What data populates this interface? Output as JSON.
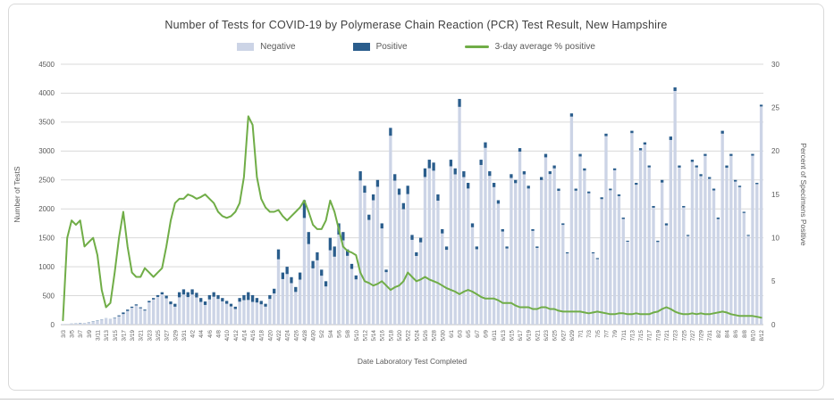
{
  "chart_data": {
    "type": "bar",
    "subtype": "stacked-bars-with-line-overlay",
    "title": "Number of Tests for COVID-19 by Polymerase Chain Reaction (PCR) Test Result, New Hampshire",
    "xlabel": "Date Laboratory Test Completed",
    "ylabel_left": "Number of TestS",
    "ylabel_right": "Percent of Specimens Positive",
    "ylim_left": [
      0,
      4500
    ],
    "ytick_step_left": 500,
    "ylim_right": [
      0,
      30
    ],
    "ytick_step_right": 5,
    "grid": true,
    "legend_position": "top",
    "colors": {
      "negative": "#ccd4e6",
      "positive": "#2a5d8c",
      "line": "#70ad47",
      "grid": "#d9d9d9",
      "axis_text": "#595959",
      "title_text": "#3f3f3f"
    },
    "dates": [
      "3/3",
      "3/4",
      "3/5",
      "3/6",
      "3/7",
      "3/8",
      "3/9",
      "3/10",
      "3/11",
      "3/12",
      "3/13",
      "3/14",
      "3/15",
      "3/16",
      "3/17",
      "3/18",
      "3/19",
      "3/20",
      "3/21",
      "3/22",
      "3/23",
      "3/24",
      "3/25",
      "3/26",
      "3/27",
      "3/28",
      "3/29",
      "3/30",
      "3/31",
      "4/1",
      "4/2",
      "4/3",
      "4/4",
      "4/5",
      "4/6",
      "4/7",
      "4/8",
      "4/9",
      "4/10",
      "4/11",
      "4/12",
      "4/13",
      "4/14",
      "4/15",
      "4/16",
      "4/17",
      "4/18",
      "4/19",
      "4/20",
      "4/21",
      "4/22",
      "4/23",
      "4/24",
      "4/25",
      "4/26",
      "4/27",
      "4/28",
      "4/29",
      "4/30",
      "5/1",
      "5/2",
      "5/3",
      "5/4",
      "5/5",
      "5/6",
      "5/7",
      "5/8",
      "5/9",
      "5/10",
      "5/11",
      "5/12",
      "5/13",
      "5/14",
      "5/15",
      "5/16",
      "5/17",
      "5/18",
      "5/19",
      "5/20",
      "5/21",
      "5/22",
      "5/23",
      "5/24",
      "5/25",
      "5/26",
      "5/27",
      "5/28",
      "5/29",
      "5/30",
      "5/31",
      "6/1",
      "6/2",
      "6/3",
      "6/4",
      "6/5",
      "6/6",
      "6/7",
      "6/8",
      "6/9",
      "6/10",
      "6/11",
      "6/12",
      "6/13",
      "6/14",
      "6/15",
      "6/16",
      "6/17",
      "6/18",
      "6/19",
      "6/20",
      "6/21",
      "6/22",
      "6/23",
      "6/24",
      "6/25",
      "6/26",
      "6/27",
      "6/28",
      "6/29",
      "6/30",
      "7/1",
      "7/2",
      "7/3",
      "7/4",
      "7/5",
      "7/6",
      "7/7",
      "7/8",
      "7/9",
      "7/10",
      "7/11",
      "7/12",
      "7/13",
      "7/14",
      "7/15",
      "7/16",
      "7/17",
      "7/18",
      "7/19",
      "7/20",
      "7/21",
      "7/22",
      "7/23",
      "7/24",
      "7/25",
      "7/26",
      "7/27",
      "7/28",
      "7/29",
      "7/30",
      "7/31",
      "8/1",
      "8/2",
      "8/3",
      "8/4",
      "8/5",
      "8/6",
      "8/7",
      "8/8",
      "8/9",
      "8/10",
      "8/11",
      "8/12"
    ],
    "xtick_every": 2,
    "series": [
      {
        "name": "Negative",
        "type": "bar",
        "stack": "tests",
        "values": [
          10,
          11,
          16,
          19,
          26,
          23,
          36,
          49,
          64,
          86,
          108,
          92,
          112,
          144,
          183,
          236,
          291,
          331,
          283,
          243,
          385,
          435,
          479,
          524,
          455,
          352,
          310,
          472,
          521,
          476,
          520,
          470,
          392,
          340,
          436,
          482,
          444,
          402,
          360,
          315,
          270,
          396,
          423,
          426,
          393,
          382,
          351,
          311,
          444,
          539,
          1129,
          787,
          874,
          717,
          565,
          778,
          1843,
          1392,
          973,
          1112,
          845,
          660,
          1285,
          1174,
          1557,
          1456,
          1189,
          963,
          782,
          2491,
          2280,
          1809,
          2149,
          2382,
          1662,
          907,
          3264,
          2488,
          2244,
          1995,
          2256,
          1465,
          1187,
          1422,
          2551,
          2702,
          2660,
          2142,
          1576,
          1293,
          2736,
          2597,
          3763,
          2549,
          2352,
          1683,
          1303,
          2759,
          3055,
          2570,
          2376,
          2090,
          1609,
          1316,
          2535,
          2445,
          2989,
          2597,
          2352,
          1620,
          1326,
          2499,
          2891,
          2602,
          2700,
          2312,
          1724,
          1231,
          3595,
          2315,
          2906,
          2662,
          2270,
          1232,
          1133,
          2169,
          3257,
          2322,
          2668,
          2221,
          1826,
          1433,
          3310,
          2418,
          3013,
          3112,
          2717,
          2021,
          1428,
          2455,
          1715,
          3191,
          4038,
          2714,
          2025,
          1531,
          2813,
          2717,
          2566,
          2915,
          2519,
          2319,
          1824,
          3300,
          2711,
          2915,
          2472,
          2376,
          1930,
          1534,
          2920,
          2428,
          3770
        ]
      },
      {
        "name": "Positive",
        "type": "bar",
        "stack": "tests",
        "values": [
          0,
          1,
          2,
          3,
          4,
          2,
          4,
          6,
          6,
          4,
          2,
          3,
          8,
          16,
          27,
          24,
          19,
          19,
          17,
          17,
          25,
          25,
          31,
          36,
          45,
          48,
          50,
          88,
          89,
          84,
          90,
          80,
          68,
          60,
          74,
          78,
          66,
          58,
          50,
          45,
          40,
          64,
          87,
          134,
          117,
          78,
          59,
          49,
          66,
          81,
          171,
          113,
          126,
          103,
          85,
          122,
          307,
          208,
          127,
          138,
          105,
          90,
          215,
          176,
          193,
          144,
          111,
          87,
          68,
          159,
          120,
          91,
          101,
          118,
          88,
          43,
          136,
          112,
          106,
          105,
          144,
          85,
          63,
          78,
          149,
          148,
          140,
          108,
          74,
          57,
          114,
          103,
          137,
          101,
          98,
          67,
          47,
          91,
          95,
          80,
          74,
          60,
          41,
          34,
          65,
          55,
          61,
          53,
          48,
          30,
          24,
          51,
          59,
          48,
          50,
          38,
          26,
          19,
          55,
          35,
          44,
          38,
          30,
          18,
          17,
          31,
          43,
          28,
          32,
          29,
          24,
          17,
          40,
          32,
          37,
          38,
          33,
          29,
          22,
          45,
          35,
          59,
          62,
          36,
          25,
          19,
          37,
          33,
          34,
          35,
          31,
          31,
          26,
          50,
          39,
          35,
          28,
          24,
          20,
          16,
          30,
          22,
          30
        ]
      },
      {
        "name": "3-day average % positive",
        "type": "line",
        "axis": "right",
        "values": [
          0.5,
          10,
          12,
          11.5,
          12,
          9,
          9.5,
          10,
          8,
          4,
          2,
          2.5,
          6,
          10,
          13,
          9,
          6,
          5.5,
          5.5,
          6.5,
          6,
          5.5,
          6,
          6.5,
          9,
          12,
          14,
          14.5,
          14.5,
          15,
          14.8,
          14.5,
          14.7,
          15,
          14.5,
          14,
          13,
          12.5,
          12.3,
          12.5,
          13,
          14,
          17,
          24,
          23,
          17,
          14.5,
          13.5,
          13,
          13,
          13.2,
          12.5,
          12,
          12.5,
          13,
          13.5,
          14.3,
          13,
          11.5,
          11,
          11,
          12,
          14.3,
          13,
          11,
          9,
          8.5,
          8.3,
          8,
          6,
          5,
          4.8,
          4.5,
          4.7,
          5,
          4.5,
          4,
          4.3,
          4.5,
          5,
          6,
          5.5,
          5,
          5.2,
          5.5,
          5.2,
          5,
          4.8,
          4.5,
          4.2,
          4,
          3.8,
          3.5,
          3.8,
          4,
          3.8,
          3.5,
          3.2,
          3,
          3,
          3,
          2.8,
          2.5,
          2.5,
          2.5,
          2.2,
          2,
          2,
          2,
          1.8,
          1.8,
          2,
          2,
          1.8,
          1.8,
          1.6,
          1.5,
          1.5,
          1.5,
          1.5,
          1.5,
          1.4,
          1.3,
          1.4,
          1.5,
          1.4,
          1.3,
          1.2,
          1.2,
          1.3,
          1.3,
          1.2,
          1.2,
          1.3,
          1.2,
          1.2,
          1.2,
          1.4,
          1.5,
          1.8,
          2,
          1.8,
          1.5,
          1.3,
          1.2,
          1.2,
          1.3,
          1.2,
          1.3,
          1.2,
          1.2,
          1.3,
          1.4,
          1.5,
          1.4,
          1.2,
          1.1,
          1,
          1,
          1,
          1,
          0.9,
          0.8
        ]
      }
    ]
  }
}
